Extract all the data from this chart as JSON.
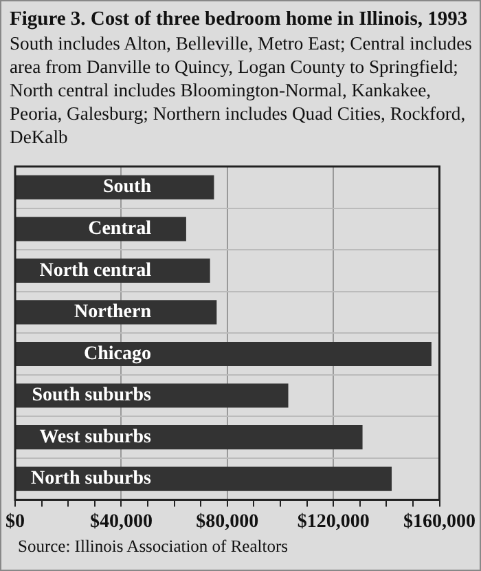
{
  "chart_data": {
    "type": "bar",
    "orientation": "horizontal",
    "title": "Figure 3. Cost of three bedroom home in Illinois, 1993",
    "subtitle": "South includes Alton, Belleville, Metro East; Central includes area from Danville to Quincy, Logan County to Springfield; North central includes Bloomington-Normal, Kankakee, Peoria, Galesburg; Northern includes Quad Cities, Rockford, DeKalb",
    "categories": [
      "South",
      "Central",
      "North central",
      "Northern",
      "Chicago",
      "South suburbs",
      "West suburbs",
      "North suburbs"
    ],
    "values": [
      75000,
      64500,
      73500,
      76000,
      157000,
      103000,
      131000,
      142000
    ],
    "color": "#333333",
    "xlim": [
      0,
      160000
    ],
    "xticks": [
      {
        "value": 0,
        "label": "$0"
      },
      {
        "value": 10000,
        "label": null
      },
      {
        "value": 20000,
        "label": null
      },
      {
        "value": 30000,
        "label": null
      },
      {
        "value": 40000,
        "label": "$40,000"
      },
      {
        "value": 50000,
        "label": null
      },
      {
        "value": 60000,
        "label": null
      },
      {
        "value": 70000,
        "label": null
      },
      {
        "value": 80000,
        "label": "$80,000"
      },
      {
        "value": 90000,
        "label": null
      },
      {
        "value": 100000,
        "label": null
      },
      {
        "value": 110000,
        "label": null
      },
      {
        "value": 120000,
        "label": "$120,000"
      },
      {
        "value": 130000,
        "label": null
      },
      {
        "value": 140000,
        "label": null
      },
      {
        "value": 150000,
        "label": null
      },
      {
        "value": 160000,
        "label": "$160,000"
      }
    ],
    "grid": true,
    "tick_labels": "x",
    "annotations": [
      "Source: Illinois Association of Realtors"
    ]
  }
}
